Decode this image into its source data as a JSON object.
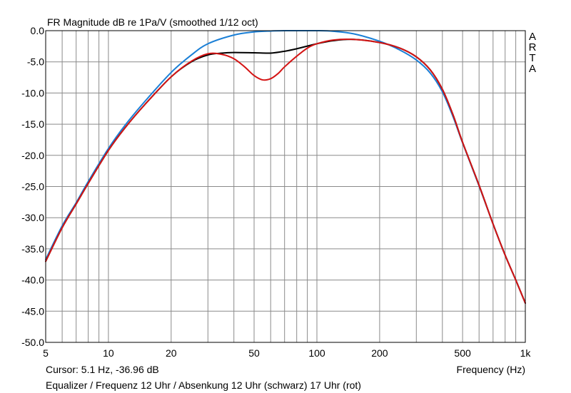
{
  "title": "FR Magnitude dB re 1Pa/V (smoothed 1/12 oct)",
  "side_label": [
    "A",
    "R",
    "T",
    "A"
  ],
  "cursor_text": "Cursor: 5.1 Hz, -36.96 dB",
  "caption": "Equalizer / Frequenz 12 Uhr / Absenkung 12 Uhr (schwarz) 17 Uhr (rot)",
  "x_axis_label": "Frequency (Hz)",
  "chart_data": {
    "type": "line",
    "title": "FR Magnitude dB re 1Pa/V (smoothed 1/12 oct)",
    "xlabel": "Frequency (Hz)",
    "ylabel": "",
    "xscale": "log",
    "xlim": [
      5,
      1000
    ],
    "ylim": [
      -50,
      0
    ],
    "grid": true,
    "x_ticks": [
      {
        "value": 5,
        "label": "5"
      },
      {
        "value": 10,
        "label": "10"
      },
      {
        "value": 20,
        "label": "20"
      },
      {
        "value": 50,
        "label": "50"
      },
      {
        "value": 100,
        "label": "100"
      },
      {
        "value": 200,
        "label": "200"
      },
      {
        "value": 500,
        "label": "500"
      },
      {
        "value": 1000,
        "label": "1k"
      }
    ],
    "y_ticks": [
      {
        "value": 0,
        "label": "0.0"
      },
      {
        "value": -5,
        "label": "-5.0"
      },
      {
        "value": -10,
        "label": "-10.0"
      },
      {
        "value": -15,
        "label": "-15.0"
      },
      {
        "value": -20,
        "label": "-20.0"
      },
      {
        "value": -25,
        "label": "-25.0"
      },
      {
        "value": -30,
        "label": "-30.0"
      },
      {
        "value": -35,
        "label": "-35.0"
      },
      {
        "value": -40,
        "label": "-40.0"
      },
      {
        "value": -45,
        "label": "-45.0"
      },
      {
        "value": -50,
        "label": "-50.0"
      }
    ],
    "series": [
      {
        "color": "#1a7fd6",
        "x": [
          5,
          6,
          7,
          8,
          10,
          12,
          15,
          20,
          25,
          30,
          40,
          50,
          60,
          70,
          80,
          100,
          120,
          150,
          200,
          250,
          300,
          350,
          400,
          450,
          500,
          600,
          700,
          800,
          900,
          1000
        ],
        "y": [
          -36.7,
          -31.3,
          -27.6,
          -24.2,
          -18.9,
          -15.2,
          -11.3,
          -6.7,
          -3.9,
          -2.1,
          -0.7,
          -0.2,
          -0.05,
          0,
          0,
          0,
          -0.1,
          -0.5,
          -1.7,
          -3.1,
          -4.7,
          -6.8,
          -9.8,
          -13.8,
          -18.0,
          -24.9,
          -31.0,
          -36.0,
          -40.0,
          -43.7
        ]
      },
      {
        "color": "#000000",
        "x": [
          5,
          6,
          7,
          8,
          10,
          12,
          15,
          20,
          25,
          30,
          35,
          40,
          50,
          60,
          70,
          80,
          100,
          120,
          150,
          200,
          250,
          300,
          350,
          400,
          450,
          500,
          600,
          700,
          800,
          900,
          1000
        ],
        "y": [
          -37.0,
          -31.6,
          -27.8,
          -24.5,
          -19.2,
          -15.6,
          -11.8,
          -7.4,
          -5.0,
          -3.9,
          -3.6,
          -3.5,
          -3.55,
          -3.6,
          -3.3,
          -2.9,
          -2.1,
          -1.6,
          -1.4,
          -1.9,
          -2.8,
          -4.2,
          -6.3,
          -9.4,
          -13.5,
          -17.9,
          -24.8,
          -31.0,
          -36.0,
          -40.0,
          -43.7
        ]
      },
      {
        "color": "#d41414",
        "x": [
          5,
          6,
          7,
          8,
          10,
          12,
          15,
          20,
          25,
          30,
          35,
          40,
          45,
          50,
          55,
          60,
          65,
          70,
          80,
          90,
          100,
          120,
          150,
          200,
          250,
          300,
          350,
          400,
          450,
          500,
          600,
          700,
          800,
          900,
          1000
        ],
        "y": [
          -37.0,
          -31.6,
          -27.8,
          -24.5,
          -19.2,
          -15.6,
          -11.8,
          -7.4,
          -4.9,
          -3.7,
          -3.8,
          -4.5,
          -5.8,
          -7.2,
          -7.9,
          -7.7,
          -6.9,
          -5.8,
          -4.1,
          -2.8,
          -2.1,
          -1.5,
          -1.4,
          -1.9,
          -2.8,
          -4.2,
          -6.3,
          -9.4,
          -13.5,
          -17.9,
          -24.8,
          -31.0,
          -36.0,
          -40.0,
          -43.7
        ]
      }
    ]
  }
}
